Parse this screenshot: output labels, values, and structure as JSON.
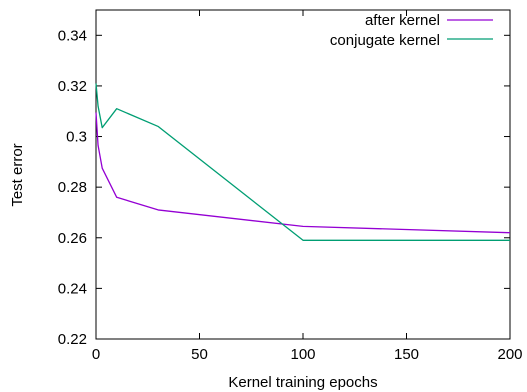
{
  "chart_data": {
    "type": "line",
    "title": "",
    "xlabel": "Kernel training epochs",
    "ylabel": "Test error",
    "xlim": [
      0,
      200
    ],
    "ylim": [
      0.22,
      0.35
    ],
    "xticks": [
      0,
      50,
      100,
      150,
      200
    ],
    "yticks": [
      0.22,
      0.24,
      0.26,
      0.28,
      0.3,
      0.32,
      0.34
    ],
    "xtick_labels": [
      "0",
      "50",
      "100",
      "150",
      "200"
    ],
    "ytick_labels": [
      "0.22",
      "0.24",
      "0.26",
      "0.28",
      "0.3",
      "0.32",
      "0.34"
    ],
    "grid": false,
    "legend_position": "top-right",
    "series": [
      {
        "name": "after kernel",
        "color": "#9400d3",
        "x": [
          0,
          1,
          3,
          10,
          30,
          100,
          200
        ],
        "y": [
          0.3095,
          0.2965,
          0.2875,
          0.276,
          0.271,
          0.2645,
          0.262
        ]
      },
      {
        "name": "conjugate kernel",
        "color": "#009e73",
        "x": [
          0,
          1,
          3,
          10,
          30,
          100,
          200
        ],
        "y": [
          0.321,
          0.312,
          0.3035,
          0.311,
          0.304,
          0.259,
          0.259
        ]
      }
    ]
  }
}
